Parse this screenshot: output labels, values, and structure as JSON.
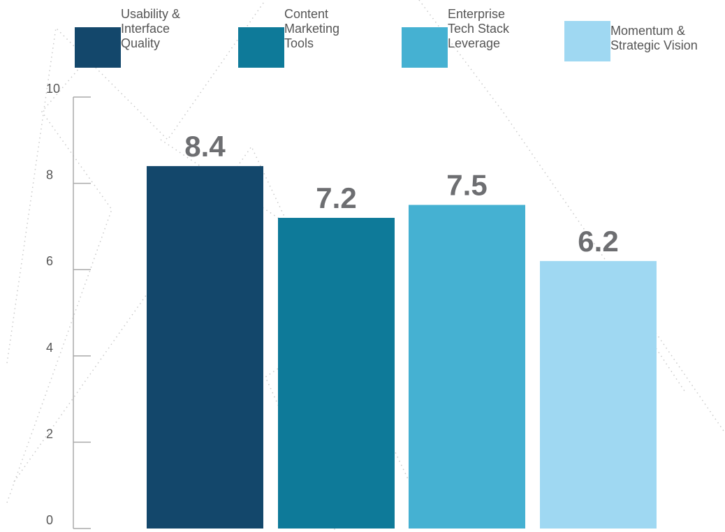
{
  "chart_data": {
    "type": "bar",
    "categories": [
      "Usability & Interface Quality",
      "Content Marketing Tools",
      "Enterprise Tech Stack Leverage",
      "Momentum & Strategic Vision"
    ],
    "legend_labels": [
      "Usability &\nInterface\nQuality",
      "Content\nMarketing\nTools",
      "Enterprise\nTech Stack\nLeverage",
      "Momentum &\nStrategic Vision"
    ],
    "values": [
      8.4,
      7.2,
      7.5,
      6.2
    ],
    "value_labels": [
      "8.4",
      "7.2",
      "7.5",
      "6.2"
    ],
    "colors": [
      "#13476b",
      "#0e7a99",
      "#45b1d2",
      "#9fd8f2"
    ],
    "ylim": [
      0,
      10
    ],
    "yticks": [
      0,
      2,
      4,
      6,
      8,
      10
    ],
    "title": "",
    "xlabel": "",
    "ylabel": "",
    "grid": false,
    "legend_position": "top"
  }
}
